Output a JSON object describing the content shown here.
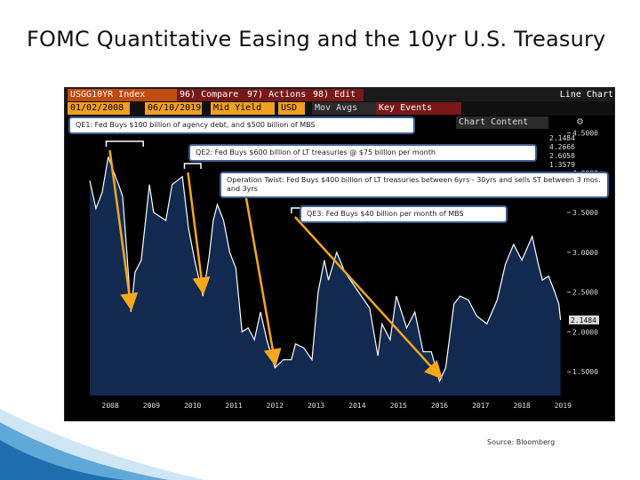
{
  "slide": {
    "title": "FOMC Quantitative Easing and the 10yr U.S. Treasury",
    "source": "Source: Bloomberg"
  },
  "terminal": {
    "ticker": "USGG10YR Index",
    "compare_label": "Compare",
    "actions_label": "Actions",
    "edit_label": "Edit",
    "chart_type_label": "Line Chart",
    "start_date": "01/02/2008",
    "end_date": "06/10/2019",
    "field": "Mid Yield",
    "currency": "USD",
    "mov_avgs_label": "Mov Avgs",
    "key_events_label": "Key Events",
    "chart_content_label": "Chart Content",
    "legend_values": [
      "2.1484",
      "4.2666",
      "2.6058",
      "1.3579"
    ],
    "last_price_tag": "2.1484"
  },
  "callouts": {
    "qe1": "QE1: Fed Buys $100 billion of agency debt, and $500 billion of MBS",
    "qe2": "QE2: Fed Buys $600 billion of LT treasuries @ $75 billion per month",
    "twist": "Operation Twist: Fed Buys $400 billion of LT treasuries between 6yrs - 30yrs and sells ST between 3 mos. and 3yrs",
    "qe3": "QE3: Fed Buys $40 billion per month of MBS"
  },
  "colors": {
    "area_fill": "#122a50",
    "line": "#ffffff",
    "arrow": "#f5a81c",
    "callout_border": "#3b5f8e"
  },
  "chart_data": {
    "type": "area",
    "x_ticks": [
      "2008",
      "2009",
      "2010",
      "2011",
      "2012",
      "2013",
      "2014",
      "2015",
      "2016",
      "2017",
      "2018",
      "2019"
    ],
    "y_ticks": [
      "1.5000",
      "2.0000",
      "2.5000",
      "3.0000",
      "3.5000",
      "4.0000",
      "4.5000"
    ],
    "ylim": [
      1.2,
      4.55
    ],
    "xlim": [
      2008.0,
      2019.6
    ],
    "series": [
      {
        "points": [
          [
            2008.0,
            3.9
          ],
          [
            2008.15,
            3.55
          ],
          [
            2008.3,
            3.75
          ],
          [
            2008.45,
            4.2
          ],
          [
            2008.55,
            4.05
          ],
          [
            2008.7,
            3.85
          ],
          [
            2008.8,
            3.7
          ],
          [
            2008.9,
            3.0
          ],
          [
            2009.0,
            2.25
          ],
          [
            2009.1,
            2.75
          ],
          [
            2009.25,
            2.9
          ],
          [
            2009.45,
            3.85
          ],
          [
            2009.55,
            3.5
          ],
          [
            2009.7,
            3.45
          ],
          [
            2009.85,
            3.4
          ],
          [
            2010.0,
            3.85
          ],
          [
            2010.25,
            3.95
          ],
          [
            2010.4,
            3.3
          ],
          [
            2010.55,
            2.9
          ],
          [
            2010.75,
            2.45
          ],
          [
            2010.9,
            2.95
          ],
          [
            2011.0,
            3.4
          ],
          [
            2011.1,
            3.6
          ],
          [
            2011.25,
            3.4
          ],
          [
            2011.4,
            3.0
          ],
          [
            2011.55,
            2.8
          ],
          [
            2011.7,
            2.0
          ],
          [
            2011.85,
            2.05
          ],
          [
            2012.0,
            1.9
          ],
          [
            2012.15,
            2.25
          ],
          [
            2012.3,
            1.9
          ],
          [
            2012.5,
            1.55
          ],
          [
            2012.7,
            1.65
          ],
          [
            2012.9,
            1.65
          ],
          [
            2013.0,
            1.85
          ],
          [
            2013.2,
            1.8
          ],
          [
            2013.4,
            1.65
          ],
          [
            2013.55,
            2.5
          ],
          [
            2013.7,
            2.9
          ],
          [
            2013.8,
            2.65
          ],
          [
            2014.0,
            3.0
          ],
          [
            2014.2,
            2.75
          ],
          [
            2014.4,
            2.6
          ],
          [
            2014.6,
            2.45
          ],
          [
            2014.8,
            2.3
          ],
          [
            2015.0,
            1.7
          ],
          [
            2015.1,
            2.1
          ],
          [
            2015.3,
            1.9
          ],
          [
            2015.45,
            2.45
          ],
          [
            2015.7,
            2.05
          ],
          [
            2015.9,
            2.25
          ],
          [
            2016.1,
            1.75
          ],
          [
            2016.3,
            1.75
          ],
          [
            2016.5,
            1.38
          ],
          [
            2016.65,
            1.55
          ],
          [
            2016.85,
            2.35
          ],
          [
            2017.0,
            2.45
          ],
          [
            2017.2,
            2.4
          ],
          [
            2017.4,
            2.2
          ],
          [
            2017.65,
            2.1
          ],
          [
            2017.9,
            2.4
          ],
          [
            2018.1,
            2.85
          ],
          [
            2018.3,
            3.1
          ],
          [
            2018.5,
            2.9
          ],
          [
            2018.75,
            3.2
          ],
          [
            2018.9,
            2.85
          ],
          [
            2019.0,
            2.65
          ],
          [
            2019.15,
            2.7
          ],
          [
            2019.3,
            2.5
          ],
          [
            2019.4,
            2.35
          ],
          [
            2019.44,
            2.15
          ]
        ]
      }
    ],
    "grid": false,
    "annotations": [
      {
        "label": "QE1",
        "bracket": [
          2008.4,
          2009.3
        ]
      },
      {
        "label": "QE2",
        "bracket": [
          2010.3,
          2010.7
        ]
      },
      {
        "label": "Operation Twist",
        "bracket": [
          2011.7,
          2012.9
        ]
      },
      {
        "label": "QE3",
        "bracket": [
          2012.9,
          2014.8
        ]
      }
    ]
  }
}
